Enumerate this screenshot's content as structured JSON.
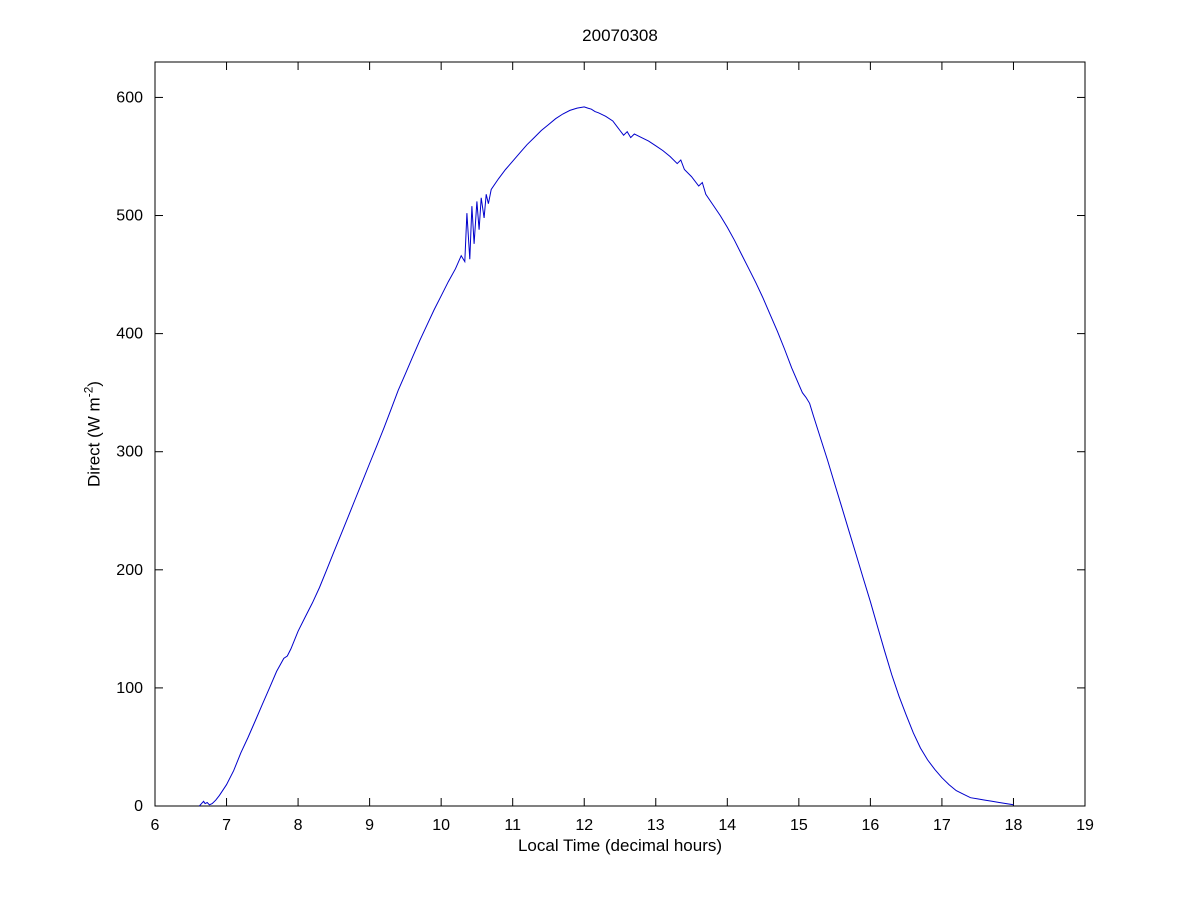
{
  "figure": {
    "background": "#ffffff",
    "axes_color": "#000000"
  },
  "chart_data": {
    "type": "line",
    "title": "20070308",
    "xlabel": "Local Time (decimal hours)",
    "ylabel": "Direct (W m^-2)",
    "ylabel_parts": {
      "prefix": "Direct (W m",
      "sup": "-2",
      "suffix": ")"
    },
    "xlim": [
      6,
      19
    ],
    "ylim": [
      0,
      630
    ],
    "xticks": [
      6,
      7,
      8,
      9,
      10,
      11,
      12,
      13,
      14,
      15,
      16,
      17,
      18,
      19
    ],
    "yticks": [
      0,
      100,
      200,
      300,
      400,
      500,
      600
    ],
    "grid": false,
    "legend": "none",
    "line_color": "#0000CC",
    "series": [
      {
        "name": "Direct",
        "x": [
          6.62,
          6.65,
          6.68,
          6.7,
          6.73,
          6.76,
          6.8,
          6.85,
          6.9,
          7.0,
          7.1,
          7.2,
          7.3,
          7.4,
          7.5,
          7.6,
          7.7,
          7.8,
          7.85,
          7.9,
          8.0,
          8.1,
          8.2,
          8.3,
          8.4,
          8.5,
          8.6,
          8.7,
          8.8,
          8.9,
          9.0,
          9.1,
          9.2,
          9.3,
          9.4,
          9.5,
          9.6,
          9.7,
          9.8,
          9.9,
          10.0,
          10.1,
          10.2,
          10.28,
          10.33,
          10.36,
          10.4,
          10.43,
          10.46,
          10.5,
          10.53,
          10.56,
          10.6,
          10.63,
          10.66,
          10.7,
          10.8,
          10.9,
          11.0,
          11.1,
          11.2,
          11.3,
          11.4,
          11.5,
          11.6,
          11.7,
          11.8,
          11.9,
          12.0,
          12.05,
          12.1,
          12.15,
          12.2,
          12.3,
          12.4,
          12.5,
          12.55,
          12.6,
          12.65,
          12.7,
          12.8,
          12.9,
          13.0,
          13.1,
          13.2,
          13.3,
          13.35,
          13.4,
          13.5,
          13.6,
          13.65,
          13.7,
          13.8,
          13.9,
          14.0,
          14.1,
          14.2,
          14.3,
          14.4,
          14.5,
          14.6,
          14.7,
          14.8,
          14.9,
          15.0,
          15.05,
          15.1,
          15.15,
          15.2,
          15.3,
          15.4,
          15.5,
          15.6,
          15.7,
          15.8,
          15.9,
          16.0,
          16.1,
          16.2,
          16.3,
          16.4,
          16.5,
          16.6,
          16.7,
          16.8,
          16.9,
          17.0,
          17.1,
          17.2,
          17.3,
          17.4,
          17.5,
          17.6,
          17.7,
          17.8,
          17.9,
          18.0
        ],
        "y": [
          0,
          2,
          4,
          2,
          3,
          1,
          2,
          5,
          9,
          18,
          30,
          45,
          58,
          72,
          86,
          100,
          114,
          125,
          127,
          133,
          148,
          160,
          172,
          185,
          200,
          215,
          230,
          245,
          260,
          275,
          290,
          305,
          320,
          336,
          352,
          366,
          380,
          394,
          407,
          420,
          432,
          444,
          455,
          466,
          461,
          502,
          463,
          508,
          476,
          512,
          488,
          515,
          498,
          518,
          510,
          522,
          531,
          539,
          546,
          553,
          560,
          566,
          572,
          577,
          582,
          586,
          589,
          591,
          592,
          591,
          590,
          588,
          587,
          584,
          580,
          572,
          568,
          571,
          566,
          569,
          566,
          563,
          559,
          555,
          550,
          544,
          547,
          539,
          533,
          525,
          528,
          518,
          509,
          500,
          490,
          479,
          467,
          455,
          443,
          430,
          416,
          402,
          387,
          371,
          357,
          350,
          346,
          341,
          331,
          312,
          293,
          273,
          253,
          233,
          213,
          193,
          173,
          152,
          131,
          111,
          93,
          77,
          62,
          49,
          39,
          31,
          24,
          18,
          13,
          10,
          7,
          6,
          5,
          4,
          3,
          2,
          1
        ]
      }
    ]
  }
}
